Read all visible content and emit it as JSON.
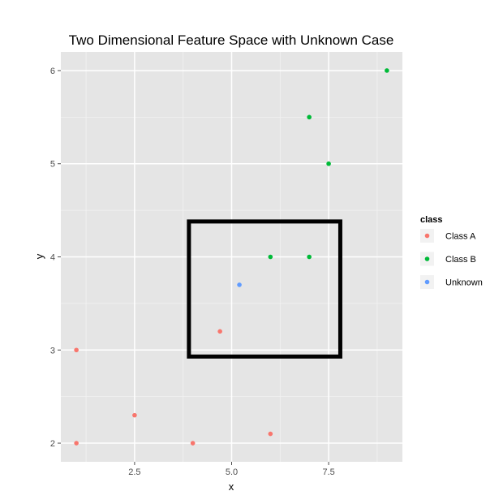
{
  "chart_data": {
    "type": "scatter",
    "title": "Two Dimensional Feature Space with Unknown Case",
    "xlabel": "x",
    "ylabel": "y",
    "xlim": [
      0.6,
      9.4
    ],
    "ylim": [
      1.8,
      6.2
    ],
    "x_ticks": [
      2.5,
      5.0,
      7.5
    ],
    "x_tick_labels": [
      "2.5",
      "5.0",
      "7.5"
    ],
    "y_ticks": [
      2,
      3,
      4,
      5,
      6
    ],
    "y_tick_labels": [
      "2",
      "3",
      "4",
      "5",
      "6"
    ],
    "grid": true,
    "legend": {
      "title": "class",
      "placement": "right"
    },
    "series": [
      {
        "name": "Class A",
        "color": "#F8766D",
        "points": [
          {
            "x": 1.0,
            "y": 2.0
          },
          {
            "x": 1.0,
            "y": 3.0
          },
          {
            "x": 2.5,
            "y": 2.3
          },
          {
            "x": 4.0,
            "y": 2.0
          },
          {
            "x": 4.7,
            "y": 3.2
          },
          {
            "x": 6.0,
            "y": 2.1
          }
        ]
      },
      {
        "name": "Class B",
        "color": "#00BA38",
        "points": [
          {
            "x": 6.0,
            "y": 4.0
          },
          {
            "x": 7.0,
            "y": 4.0
          },
          {
            "x": 7.5,
            "y": 5.0
          },
          {
            "x": 7.0,
            "y": 5.5
          },
          {
            "x": 9.0,
            "y": 6.0
          }
        ]
      },
      {
        "name": "Unknown",
        "color": "#619CFF",
        "points": [
          {
            "x": 5.2,
            "y": 3.7
          }
        ]
      }
    ],
    "annotations": [
      {
        "type": "rectangle",
        "x_range": [
          3.9,
          7.8
        ],
        "y_range": [
          2.93,
          4.38
        ],
        "color": "#000000"
      }
    ]
  }
}
